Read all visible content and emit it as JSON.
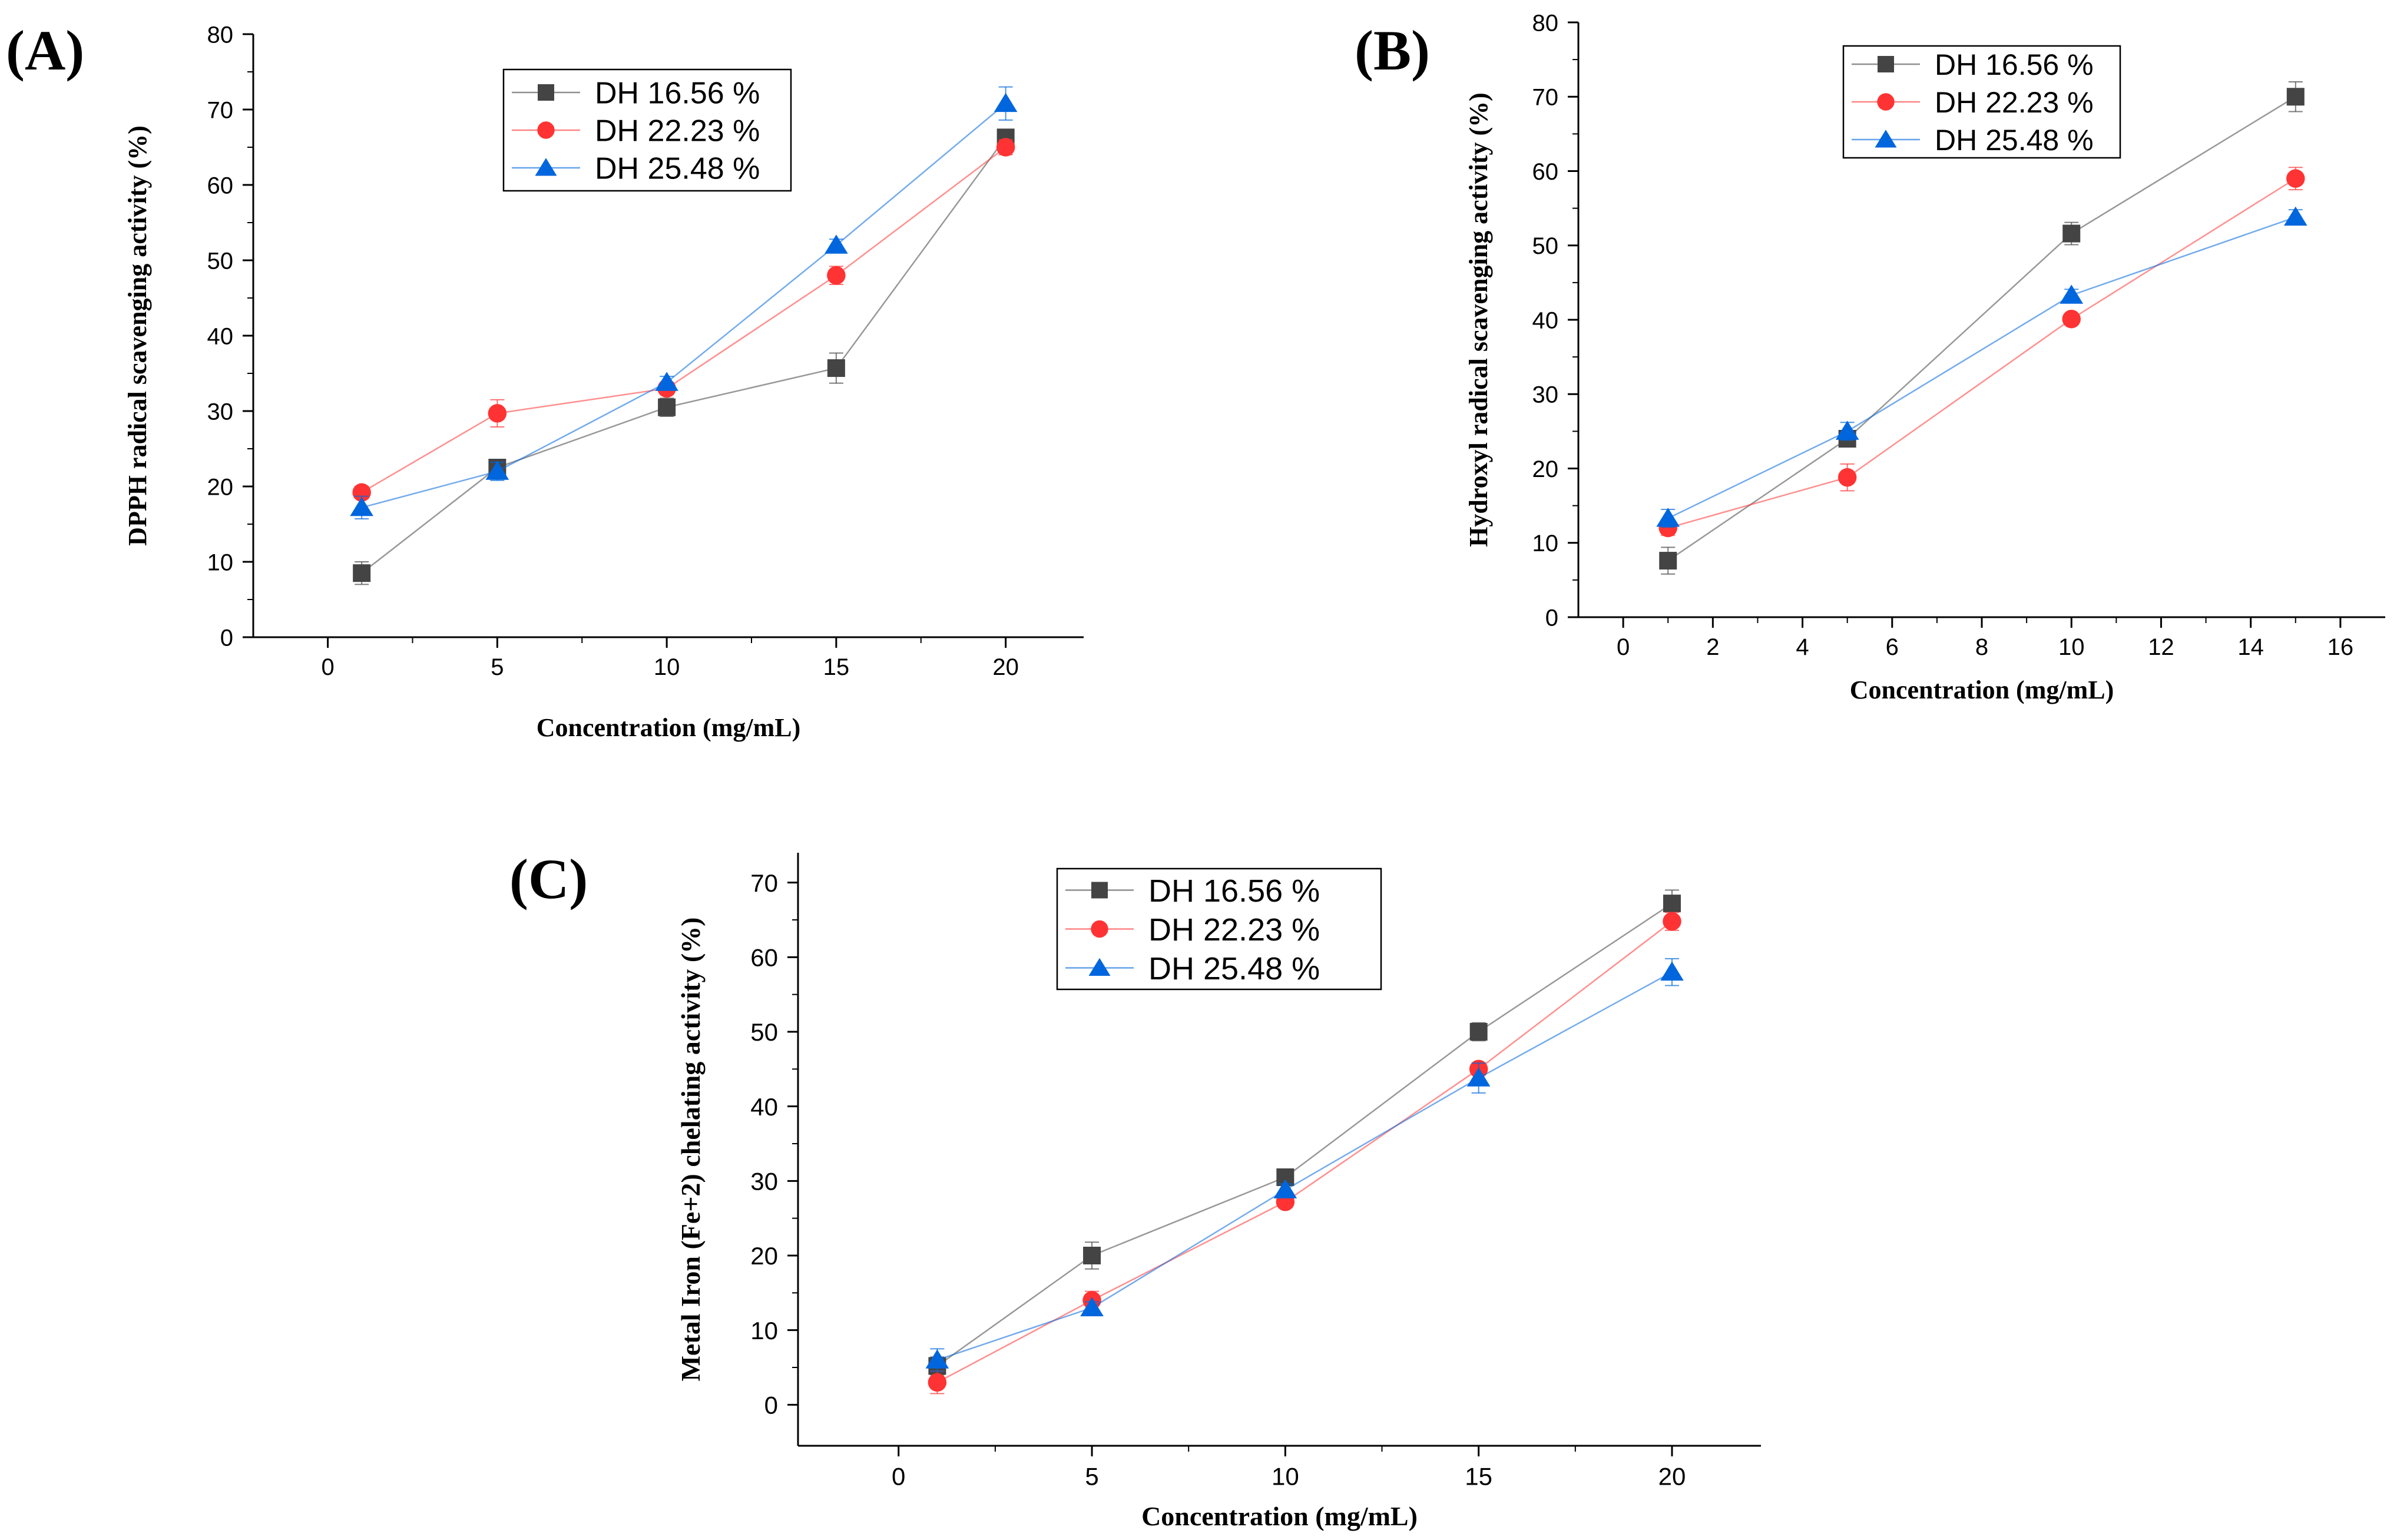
{
  "chart_data": [
    {
      "id": "A",
      "panel_label": "(A)",
      "type": "line",
      "title": "",
      "xlabel": "Concentration (mg/mL)",
      "ylabel": "DPPH radical scavenging activity (%)",
      "xlim": [
        -2.2,
        22.3
      ],
      "ylim": [
        0,
        80
      ],
      "xticks": [
        "0",
        "5",
        "10",
        "15",
        "20"
      ],
      "yticks": [
        "0",
        "10",
        "20",
        "30",
        "40",
        "50",
        "60",
        "70",
        "80"
      ],
      "legend_position": "top-center",
      "series": [
        {
          "name": "DH 16.56 %",
          "color": "#444444",
          "marker": "square",
          "x": [
            1,
            5,
            10,
            15,
            20
          ],
          "y": [
            8.5,
            22.5,
            30.5,
            35.7,
            66.3
          ],
          "err": [
            1.5,
            0.8,
            1.2,
            2.0,
            1.0
          ]
        },
        {
          "name": "DH 22.23 %",
          "color": "#ff3333",
          "marker": "circle",
          "x": [
            1,
            5,
            10,
            15,
            20
          ],
          "y": [
            19.2,
            29.7,
            33.0,
            48.0,
            65.0
          ],
          "err": [
            0.8,
            1.8,
            0.8,
            1.2,
            1.0
          ]
        },
        {
          "name": "DH 25.48 %",
          "color": "#0066dd",
          "marker": "triangle",
          "x": [
            1,
            5,
            10,
            15,
            20
          ],
          "y": [
            17.2,
            22.0,
            33.8,
            52.0,
            70.8
          ],
          "err": [
            1.5,
            1.2,
            0.8,
            0.8,
            2.2
          ]
        }
      ]
    },
    {
      "id": "B",
      "panel_label": "(B)",
      "type": "line",
      "title": "",
      "xlabel": "Concentration (mg/mL)",
      "ylabel": "Hydroxyl radical scavenging activity (%)",
      "xlim": [
        -1.0,
        17.0
      ],
      "ylim": [
        0,
        80
      ],
      "xticks": [
        "0",
        "2",
        "4",
        "6",
        "8",
        "10",
        "12",
        "14",
        "16"
      ],
      "yticks": [
        "0",
        "10",
        "20",
        "30",
        "40",
        "50",
        "60",
        "70",
        "80"
      ],
      "legend_position": "top-center",
      "series": [
        {
          "name": "DH 16.56 %",
          "color": "#444444",
          "marker": "square",
          "x": [
            1,
            5,
            10,
            15
          ],
          "y": [
            7.6,
            24.0,
            51.6,
            70.0
          ],
          "err": [
            1.8,
            0.8,
            1.5,
            2.0
          ]
        },
        {
          "name": "DH 22.23 %",
          "color": "#ff3333",
          "marker": "circle",
          "x": [
            1,
            5,
            10,
            15
          ],
          "y": [
            12.0,
            18.8,
            40.1,
            59.0
          ],
          "err": [
            1.0,
            1.8,
            0.5,
            1.5
          ]
        },
        {
          "name": "DH 25.48 %",
          "color": "#0066dd",
          "marker": "triangle",
          "x": [
            1,
            5,
            10,
            15
          ],
          "y": [
            13.3,
            25.0,
            43.3,
            53.8
          ],
          "err": [
            1.2,
            1.2,
            0.8,
            1.0
          ]
        }
      ]
    },
    {
      "id": "C",
      "panel_label": "(C)",
      "type": "line",
      "title": "",
      "xlabel": "Concentration (mg/mL)",
      "ylabel": "Metal Iron (Fe+2) chelating activity (%)",
      "xlim": [
        -2.6,
        22.3
      ],
      "ylim": [
        -5.5,
        74
      ],
      "xticks": [
        "0",
        "5",
        "10",
        "15",
        "20"
      ],
      "yticks": [
        "0",
        "10",
        "20",
        "30",
        "40",
        "50",
        "60",
        "70"
      ],
      "legend_position": "top-left",
      "series": [
        {
          "name": "DH 16.56 %",
          "color": "#444444",
          "marker": "square",
          "x": [
            1,
            5,
            10,
            15,
            20
          ],
          "y": [
            5.2,
            20.0,
            30.5,
            50.0,
            67.2
          ],
          "err": [
            1.2,
            1.8,
            0.8,
            1.2,
            1.8
          ]
        },
        {
          "name": "DH 22.23 %",
          "color": "#ff3333",
          "marker": "circle",
          "x": [
            1,
            5,
            10,
            15,
            20
          ],
          "y": [
            3.0,
            14.0,
            27.2,
            45.0,
            64.8
          ],
          "err": [
            1.5,
            1.2,
            0.8,
            0.8,
            1.2
          ]
        },
        {
          "name": "DH 25.48 %",
          "color": "#0066dd",
          "marker": "triangle",
          "x": [
            1,
            5,
            10,
            15,
            20
          ],
          "y": [
            6.0,
            13.0,
            28.8,
            43.8,
            58.0
          ],
          "err": [
            1.5,
            0.8,
            0.8,
            2.0,
            1.8
          ]
        }
      ]
    }
  ]
}
